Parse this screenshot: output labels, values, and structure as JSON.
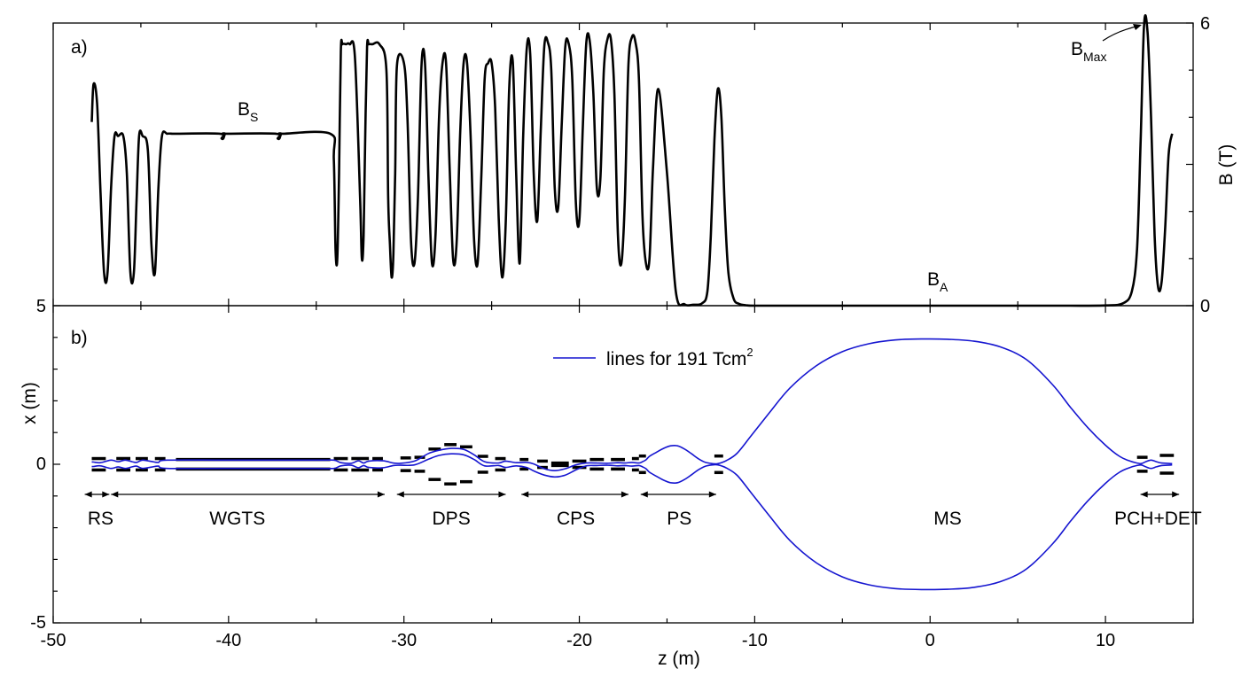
{
  "chart_data": [
    {
      "panel": "a)",
      "type": "line",
      "xlim": [
        -50,
        15
      ],
      "ylim": [
        0,
        6
      ],
      "xlabel": "",
      "ylabel": "B (T)",
      "yticks": [
        0,
        6
      ],
      "yaxis_side": "right",
      "annotations": [
        {
          "main": "B",
          "sub": "S",
          "x": -37.5,
          "y": 4.0
        },
        {
          "main": "B",
          "sub": "A",
          "x": 0.5,
          "y": 0.4
        },
        {
          "main": "B",
          "sub": "Max",
          "x": 8.2,
          "y": 5.4
        }
      ],
      "series": [
        {
          "name": "magnetic field",
          "x": [
            -47.8,
            -47.7,
            -47.5,
            -47.3,
            -47.1,
            -46.9,
            -46.7,
            -46.5,
            -46.3,
            -46.0,
            -45.8,
            -45.6,
            -45.4,
            -45.25,
            -45.1,
            -44.9,
            -44.6,
            -44.4,
            -44.2,
            -44.0,
            -43.8,
            -43.5,
            -43.2,
            -43.0,
            -40.5,
            -40.4,
            -40.3,
            -40.2,
            -40.1,
            -37.3,
            -37.2,
            -37.1,
            -37.0,
            -36.9,
            -34.2,
            -34.0,
            -33.9,
            -33.8,
            -33.7,
            -33.6,
            -33.5,
            -33.3,
            -33.1,
            -32.8,
            -32.5,
            -32.4,
            -32.3,
            -32.2,
            -32.1,
            -32.0,
            -31.8,
            -31.4,
            -31.0,
            -30.9,
            -30.8,
            -30.7,
            -30.6,
            -30.5,
            -30.4,
            -30.0,
            -29.8,
            -29.6,
            -29.4,
            -29.2,
            -29.0,
            -28.8,
            -28.6,
            -28.4,
            -28.2,
            -28.0,
            -27.8,
            -27.6,
            -27.4,
            -27.2,
            -27.0,
            -26.8,
            -26.6,
            -26.4,
            -26.2,
            -26.0,
            -25.8,
            -25.6,
            -25.4,
            -25.2,
            -25.0,
            -24.8,
            -24.6,
            -24.4,
            -24.2,
            -24.0,
            -23.8,
            -23.6,
            -23.4,
            -23.2,
            -23.0,
            -22.8,
            -22.6,
            -22.4,
            -22.2,
            -22.0,
            -21.8,
            -21.6,
            -21.4,
            -21.2,
            -21.0,
            -20.8,
            -20.6,
            -20.4,
            -20.2,
            -20.0,
            -19.8,
            -19.6,
            -19.4,
            -19.2,
            -19.0,
            -18.8,
            -18.6,
            -18.4,
            -18.2,
            -18.0,
            -17.8,
            -17.6,
            -17.4,
            -17.2,
            -17.0,
            -16.8,
            -16.6,
            -16.4,
            -16.2,
            -16.0,
            -15.8,
            -15.5,
            -15.0,
            -14.5,
            -14.0,
            -13.5,
            -13.0,
            -12.7,
            -12.5,
            -12.3,
            -12.1,
            -11.9,
            -11.7,
            -11.5,
            -11.2,
            -10.9,
            -10.5,
            -10.0,
            -8.0,
            -5.0,
            0.0,
            5.0,
            8.0,
            10.0,
            11.0,
            11.5,
            11.8,
            12.0,
            12.2,
            12.4,
            12.6,
            12.8,
            13.0,
            13.2,
            13.4,
            13.6,
            13.8
          ],
          "y": [
            3.9,
            4.7,
            4.3,
            2.4,
            0.7,
            0.7,
            2.5,
            3.6,
            3.6,
            3.6,
            2.8,
            0.7,
            0.7,
            2.2,
            3.6,
            3.6,
            3.3,
            1.3,
            0.7,
            2.5,
            3.6,
            3.65,
            3.65,
            3.65,
            3.65,
            3.55,
            3.55,
            3.65,
            3.65,
            3.65,
            3.55,
            3.55,
            3.65,
            3.65,
            3.65,
            3.1,
            1.2,
            1.0,
            2.8,
            5.4,
            5.55,
            5.55,
            5.55,
            5.3,
            2.3,
            1.0,
            1.5,
            3.8,
            5.5,
            5.55,
            5.55,
            5.55,
            5.0,
            2.3,
            1.3,
            0.6,
            1.1,
            2.8,
            5.1,
            5.15,
            4.0,
            1.4,
            0.9,
            2.3,
            5.1,
            5.15,
            2.7,
            0.9,
            1.5,
            4.0,
            5.15,
            5.15,
            3.0,
            1.0,
            1.3,
            3.6,
            5.15,
            5.15,
            3.6,
            1.4,
            0.9,
            2.6,
            4.8,
            5.15,
            5.15,
            4.2,
            1.9,
            0.6,
            1.7,
            4.6,
            5.2,
            2.8,
            0.9,
            3.6,
            5.45,
            5.35,
            2.8,
            1.8,
            3.7,
            5.5,
            5.6,
            5.0,
            2.5,
            2.1,
            3.9,
            5.5,
            5.55,
            4.8,
            2.2,
            1.8,
            3.8,
            5.6,
            5.6,
            4.5,
            2.5,
            2.7,
            5.0,
            5.65,
            5.65,
            4.5,
            1.5,
            0.9,
            2.3,
            5.1,
            5.7,
            5.6,
            4.8,
            1.9,
            0.9,
            1.0,
            2.9,
            4.6,
            2.8,
            0.3,
            0.03,
            0.02,
            0.05,
            0.3,
            1.5,
            3.5,
            4.6,
            4.0,
            2.0,
            0.7,
            0.15,
            0.04,
            0.01,
            0.0,
            0.0,
            0.0,
            0.0,
            0.0,
            0.0,
            0.005,
            0.05,
            0.3,
            1.2,
            3.4,
            5.95,
            5.8,
            4.0,
            1.5,
            0.4,
            0.5,
            1.6,
            3.2,
            3.65
          ]
        }
      ]
    },
    {
      "panel": "b)",
      "type": "line",
      "xlim": [
        -50,
        15
      ],
      "ylim": [
        -5,
        5
      ],
      "xlabel": "z (m)",
      "ylabel": "x (m)",
      "xticks": [
        -50,
        -40,
        -30,
        -20,
        -10,
        0,
        10
      ],
      "yticks": [
        -5,
        0,
        5
      ],
      "legend": {
        "label": "lines for 191 Tcm",
        "sup": "2",
        "placement": "top-center"
      },
      "series": [
        {
          "name": "upper flux line",
          "x": [
            -47.8,
            -47.7,
            -47.3,
            -46.7,
            -46.3,
            -45.9,
            -45.5,
            -45.25,
            -44.9,
            -44.4,
            -44.0,
            -43.5,
            -40.0,
            -35.0,
            -34.0,
            -33.6,
            -33.0,
            -32.6,
            -32.3,
            -32.0,
            -31.2,
            -30.6,
            -30.2,
            -29.4,
            -28.6,
            -28.0,
            -27.3,
            -26.6,
            -26.0,
            -25.4,
            -24.6,
            -24.2,
            -23.6,
            -23.0,
            -22.6,
            -22.0,
            -21.4,
            -20.8,
            -20.2,
            -19.6,
            -19.0,
            -18.4,
            -17.8,
            -17.4,
            -17.0,
            -16.6,
            -16.4,
            -16.2,
            -16.0,
            -15.6,
            -15.2,
            -14.8,
            -14.4,
            -14.0,
            -13.6,
            -13.2,
            -12.8,
            -12.4,
            -12.1,
            -11.6,
            -11.0,
            -10.2,
            -9.2,
            -8.0,
            -6.5,
            -5.0,
            -3.5,
            -2.0,
            -0.5,
            1.0,
            2.5,
            4.0,
            5.5,
            7.0,
            8.0,
            9.0,
            10.0,
            10.8,
            11.4,
            11.8,
            12.0,
            12.1,
            12.3,
            12.6,
            12.9,
            13.2,
            13.5,
            13.8
          ],
          "y": [
            0.07,
            0.07,
            0.05,
            0.13,
            0.08,
            0.13,
            0.08,
            0.06,
            0.13,
            0.09,
            0.06,
            0.13,
            0.13,
            0.13,
            0.13,
            0.05,
            0.03,
            0.11,
            0.04,
            0.1,
            0.11,
            0.04,
            0.03,
            0.1,
            0.34,
            0.44,
            0.5,
            0.47,
            0.3,
            0.08,
            0.04,
            0.1,
            0.05,
            0.06,
            0.01,
            -0.14,
            -0.2,
            -0.14,
            -0.02,
            0.04,
            0.04,
            0.03,
            0.05,
            0.04,
            0.06,
            0.04,
            0.08,
            0.14,
            0.25,
            0.38,
            0.5,
            0.58,
            0.58,
            0.48,
            0.33,
            0.17,
            0.06,
            0.02,
            0.02,
            0.12,
            0.35,
            0.9,
            1.6,
            2.4,
            3.1,
            3.55,
            3.8,
            3.92,
            3.95,
            3.94,
            3.88,
            3.7,
            3.3,
            2.5,
            1.8,
            1.15,
            0.6,
            0.25,
            0.1,
            0.04,
            0.02,
            0.03,
            0.08,
            0.13,
            0.08,
            0.04,
            0.03,
            0.02
          ]
        },
        {
          "name": "lower flux line",
          "x": [
            -47.8,
            -47.7,
            -47.3,
            -46.7,
            -46.3,
            -45.9,
            -45.5,
            -45.25,
            -44.9,
            -44.4,
            -44.0,
            -43.5,
            -40.0,
            -35.0,
            -34.0,
            -33.6,
            -33.0,
            -32.6,
            -32.3,
            -32.0,
            -31.2,
            -30.6,
            -30.2,
            -29.4,
            -28.6,
            -28.0,
            -27.3,
            -26.6,
            -26.0,
            -25.4,
            -24.6,
            -24.2,
            -23.6,
            -23.0,
            -22.6,
            -22.0,
            -21.4,
            -20.8,
            -20.2,
            -19.6,
            -19.0,
            -18.4,
            -17.8,
            -17.4,
            -17.0,
            -16.6,
            -16.4,
            -16.2,
            -16.0,
            -15.6,
            -15.2,
            -14.8,
            -14.4,
            -14.0,
            -13.6,
            -13.2,
            -12.8,
            -12.4,
            -12.1,
            -11.6,
            -11.0,
            -10.2,
            -9.2,
            -8.0,
            -6.5,
            -5.0,
            -3.5,
            -2.0,
            -0.5,
            1.0,
            2.5,
            4.0,
            5.5,
            7.0,
            8.0,
            9.0,
            10.0,
            10.8,
            11.4,
            11.8,
            12.0,
            12.1,
            12.3,
            12.6,
            12.9,
            13.2,
            13.5,
            13.8
          ],
          "y": [
            -0.07,
            -0.07,
            -0.05,
            -0.13,
            -0.08,
            -0.13,
            -0.08,
            -0.06,
            -0.13,
            -0.09,
            -0.06,
            -0.13,
            -0.13,
            -0.13,
            -0.13,
            -0.05,
            -0.03,
            -0.11,
            -0.04,
            -0.1,
            -0.11,
            -0.04,
            -0.03,
            -0.02,
            0.16,
            0.28,
            0.33,
            0.3,
            0.15,
            -0.05,
            -0.04,
            -0.1,
            -0.05,
            -0.1,
            -0.21,
            -0.34,
            -0.4,
            -0.34,
            -0.18,
            -0.05,
            -0.04,
            -0.03,
            -0.05,
            -0.04,
            -0.06,
            -0.04,
            -0.08,
            -0.14,
            -0.25,
            -0.38,
            -0.5,
            -0.58,
            -0.58,
            -0.48,
            -0.33,
            -0.17,
            -0.06,
            -0.02,
            -0.02,
            -0.12,
            -0.35,
            -0.9,
            -1.6,
            -2.4,
            -3.1,
            -3.55,
            -3.8,
            -3.92,
            -3.95,
            -3.94,
            -3.88,
            -3.7,
            -3.3,
            -2.5,
            -1.8,
            -1.15,
            -0.6,
            -0.25,
            -0.1,
            -0.04,
            -0.02,
            -0.03,
            -0.08,
            -0.13,
            -0.08,
            -0.04,
            -0.03,
            -0.02
          ]
        }
      ],
      "magnets": [
        {
          "z0": -47.8,
          "z1": -47.0,
          "x": 0.18
        },
        {
          "z0": -46.4,
          "z1": -45.6,
          "x": 0.18
        },
        {
          "z0": -45.3,
          "z1": -44.6,
          "x": 0.18
        },
        {
          "z0": -44.2,
          "z1": -43.6,
          "x": 0.18
        },
        {
          "z0": -43.0,
          "z1": -34.2,
          "x": 0.15
        },
        {
          "z0": -34.0,
          "z1": -33.2,
          "x": 0.18
        },
        {
          "z0": -33.0,
          "z1": -32.0,
          "x": 0.18
        },
        {
          "z0": -31.8,
          "z1": -31.2,
          "x": 0.18
        },
        {
          "z0": -30.2,
          "z1": -29.6,
          "x": 0.2
        },
        {
          "z0": -29.4,
          "z1": -28.8,
          "x": 0.22
        },
        {
          "z0": -28.6,
          "z1": -27.9,
          "x": 0.48
        },
        {
          "z0": -27.7,
          "z1": -27.0,
          "x": 0.62
        },
        {
          "z0": -26.8,
          "z1": -26.1,
          "x": 0.55
        },
        {
          "z0": -25.8,
          "z1": -25.2,
          "x": 0.25
        },
        {
          "z0": -24.8,
          "z1": -24.2,
          "x": 0.18
        },
        {
          "z0": -23.4,
          "z1": -22.9,
          "x": 0.15
        },
        {
          "z0": -22.4,
          "z1": -21.8,
          "x": 0.1
        },
        {
          "z0": -21.6,
          "z1": -20.6,
          "x": 0.04
        },
        {
          "z0": -20.4,
          "z1": -19.6,
          "x": 0.1
        },
        {
          "z0": -19.4,
          "z1": -18.6,
          "x": 0.15
        },
        {
          "z0": -18.2,
          "z1": -17.4,
          "x": 0.15
        },
        {
          "z0": -17.0,
          "z1": -16.6,
          "x": 0.18
        },
        {
          "z0": -16.6,
          "z1": -16.2,
          "x": 0.26
        },
        {
          "z0": -12.3,
          "z1": -11.8,
          "x": 0.26
        },
        {
          "z0": 11.8,
          "z1": 12.4,
          "x": 0.22
        },
        {
          "z0": 13.1,
          "z1": 13.9,
          "x": 0.28
        }
      ],
      "regions": [
        {
          "label": "RS",
          "z0": -48.2,
          "z1": -46.8,
          "label_z": -47.3
        },
        {
          "label": "WGTS",
          "z0": -46.7,
          "z1": -31.1,
          "label_z": -39.5
        },
        {
          "label": "DPS",
          "z0": -30.4,
          "z1": -24.2,
          "label_z": -27.3
        },
        {
          "label": "CPS",
          "z0": -23.3,
          "z1": -17.2,
          "label_z": -20.2
        },
        {
          "label": "PS",
          "z0": -16.5,
          "z1": -12.2,
          "label_z": -14.3
        },
        {
          "label": "MS",
          "z0": null,
          "z1": null,
          "label_z": 1.0
        },
        {
          "label": "PCH+DET",
          "z0": 12.0,
          "z1": 14.2,
          "label_z": 13.0
        }
      ]
    }
  ],
  "labels": {
    "panel_a": "a)",
    "panel_b": "b)",
    "bs_main": "B",
    "bs_sub": "S",
    "ba_main": "B",
    "ba_sub": "A",
    "bmax_main": "B",
    "bmax_sub": "Max",
    "y_right": "B (T)",
    "y_right_0": "0",
    "y_right_6": "6",
    "y_left": "x (m)",
    "y_left_5": "5",
    "y_left_0": "0",
    "y_left_m5": "-5",
    "x_axis": "z (m)",
    "legend_text": "lines for 191 Tcm",
    "legend_sup": "2",
    "x_ticks": [
      "-50",
      "-40",
      "-30",
      "-20",
      "-10",
      "0",
      "10"
    ]
  },
  "colors": {
    "field": "#000000",
    "flux": "#1515d0"
  }
}
